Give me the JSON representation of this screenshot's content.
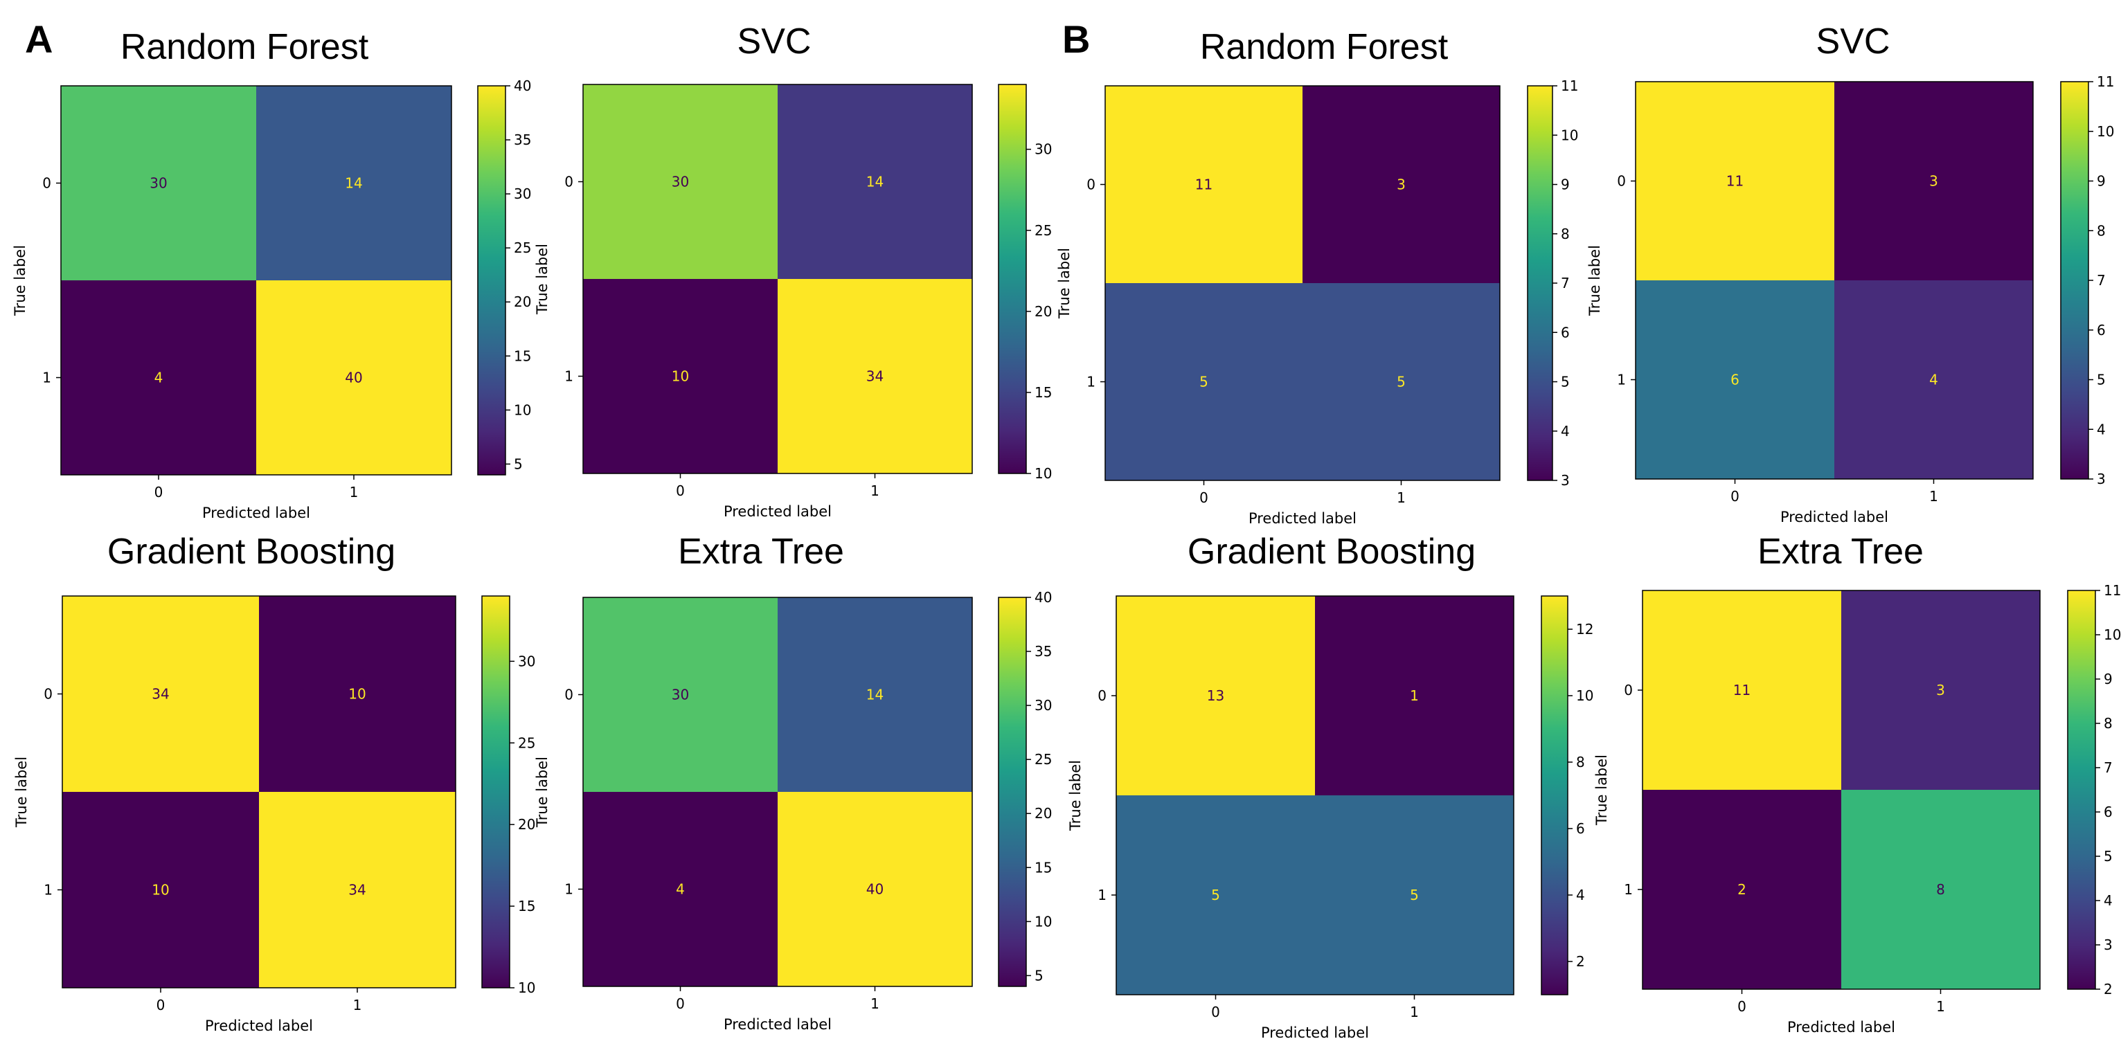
{
  "figure": {
    "panel_letters": [
      "A",
      "B"
    ]
  },
  "colormap": {
    "name": "viridis",
    "stops": [
      "#440154",
      "#482878",
      "#3e4989",
      "#31688e",
      "#26828e",
      "#1f9e89",
      "#35b779",
      "#6ece58",
      "#b5de2b",
      "#fde725"
    ]
  },
  "chart_data": [
    {
      "type": "heatmap",
      "panel": "A",
      "title": "Random Forest",
      "xlabel": "Predicted label",
      "ylabel": "True label",
      "x_ticks": [
        "0",
        "1"
      ],
      "y_ticks": [
        "0",
        "1"
      ],
      "values": [
        [
          30,
          14
        ],
        [
          4,
          40
        ]
      ],
      "vmin": 4,
      "vmax": 40,
      "colorbar_ticks": [
        "5",
        "10",
        "15",
        "20",
        "25",
        "30",
        "35",
        "40"
      ]
    },
    {
      "type": "heatmap",
      "panel": "A",
      "title": "SVC",
      "xlabel": "Predicted label",
      "ylabel": "True label",
      "x_ticks": [
        "0",
        "1"
      ],
      "y_ticks": [
        "0",
        "1"
      ],
      "values": [
        [
          30,
          14
        ],
        [
          10,
          34
        ]
      ],
      "vmin": 10,
      "vmax": 34,
      "colorbar_ticks": [
        "10",
        "15",
        "20",
        "25",
        "30"
      ]
    },
    {
      "type": "heatmap",
      "panel": "A",
      "title": "Gradient Boosting",
      "xlabel": "Predicted label",
      "ylabel": "True label",
      "x_ticks": [
        "0",
        "1"
      ],
      "y_ticks": [
        "0",
        "1"
      ],
      "values": [
        [
          34,
          10
        ],
        [
          10,
          34
        ]
      ],
      "vmin": 10,
      "vmax": 34,
      "colorbar_ticks": [
        "10",
        "15",
        "20",
        "25",
        "30"
      ]
    },
    {
      "type": "heatmap",
      "panel": "A",
      "title": "Extra Tree",
      "xlabel": "Predicted label",
      "ylabel": "True label",
      "x_ticks": [
        "0",
        "1"
      ],
      "y_ticks": [
        "0",
        "1"
      ],
      "values": [
        [
          30,
          14
        ],
        [
          4,
          40
        ]
      ],
      "vmin": 4,
      "vmax": 40,
      "colorbar_ticks": [
        "5",
        "10",
        "15",
        "20",
        "25",
        "30",
        "35",
        "40"
      ]
    },
    {
      "type": "heatmap",
      "panel": "B",
      "title": "Random Forest",
      "xlabel": "Predicted label",
      "ylabel": "True label",
      "x_ticks": [
        "0",
        "1"
      ],
      "y_ticks": [
        "0",
        "1"
      ],
      "values": [
        [
          11,
          3
        ],
        [
          5,
          5
        ]
      ],
      "vmin": 3,
      "vmax": 11,
      "colorbar_ticks": [
        "3",
        "4",
        "5",
        "6",
        "7",
        "8",
        "9",
        "10",
        "11"
      ]
    },
    {
      "type": "heatmap",
      "panel": "B",
      "title": "SVC",
      "xlabel": "Predicted label",
      "ylabel": "True label",
      "x_ticks": [
        "0",
        "1"
      ],
      "y_ticks": [
        "0",
        "1"
      ],
      "values": [
        [
          11,
          3
        ],
        [
          6,
          4
        ]
      ],
      "vmin": 3,
      "vmax": 11,
      "colorbar_ticks": [
        "3",
        "4",
        "5",
        "6",
        "7",
        "8",
        "9",
        "10",
        "11"
      ]
    },
    {
      "type": "heatmap",
      "panel": "B",
      "title": "Gradient Boosting",
      "xlabel": "Predicted label",
      "ylabel": "True label",
      "x_ticks": [
        "0",
        "1"
      ],
      "y_ticks": [
        "0",
        "1"
      ],
      "values": [
        [
          13,
          1
        ],
        [
          5,
          5
        ]
      ],
      "vmin": 1,
      "vmax": 13,
      "colorbar_ticks": [
        "2",
        "4",
        "6",
        "8",
        "10",
        "12"
      ]
    },
    {
      "type": "heatmap",
      "panel": "B",
      "title": "Extra Tree",
      "xlabel": "Predicted label",
      "ylabel": "True label",
      "x_ticks": [
        "0",
        "1"
      ],
      "y_ticks": [
        "0",
        "1"
      ],
      "values": [
        [
          11,
          3
        ],
        [
          2,
          8
        ]
      ],
      "vmin": 2,
      "vmax": 11,
      "colorbar_ticks": [
        "2",
        "3",
        "4",
        "5",
        "6",
        "7",
        "8",
        "9",
        "10",
        "11"
      ]
    }
  ]
}
